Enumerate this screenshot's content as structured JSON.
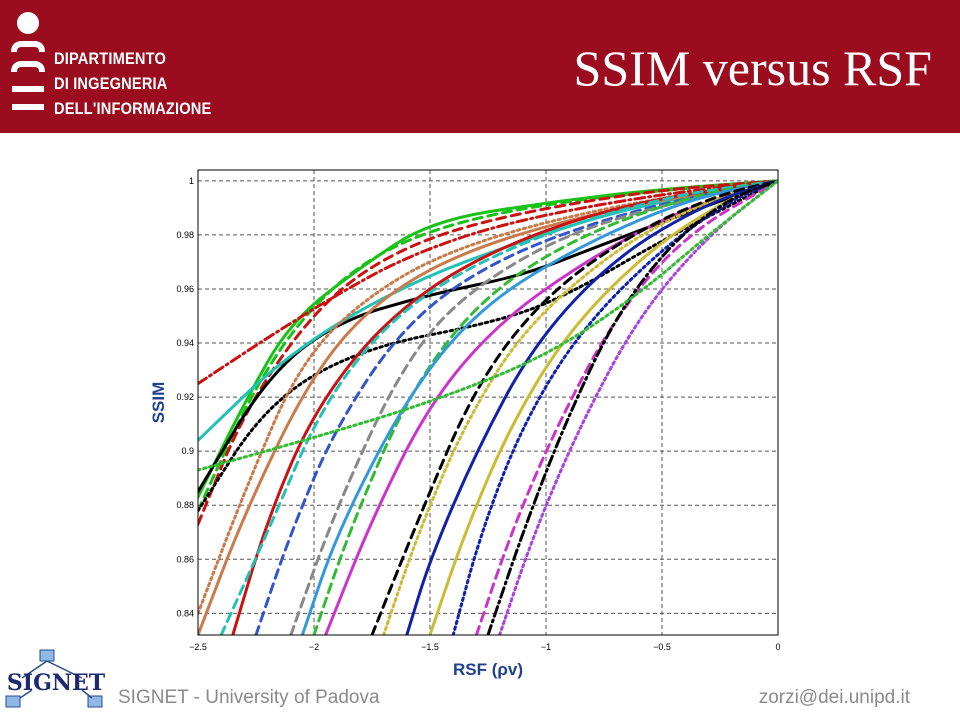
{
  "header": {
    "department_lines": [
      "DIPARTIMENTO",
      "DI INGEGNERIA",
      "DELL'INFORMAZIONE"
    ],
    "title": "SSIM versus RSF"
  },
  "footer": {
    "left": "SIGNET - University of Padova",
    "right": "zorzi@dei.unipd.it",
    "logo_text": "SIGNET"
  },
  "colors": {
    "header_bg": "#9b0d1e",
    "axis_label": "#1f3f8f",
    "footer_text": "#8a8a8a"
  },
  "chart_data": {
    "type": "line",
    "xlabel": "RSF (ρv)",
    "ylabel": "SSIM",
    "xlim": [
      -2.5,
      0
    ],
    "ylim": [
      0.832,
      1.004
    ],
    "grid": true,
    "x_ticks": [
      -2.5,
      -2,
      -1.5,
      -1,
      -0.5,
      0
    ],
    "x_tick_labels": [
      "−2.5",
      "−2",
      "−1.5",
      "−1",
      "−0.5",
      "0"
    ],
    "y_ticks": [
      0.84,
      0.86,
      0.88,
      0.9,
      0.92,
      0.94,
      0.96,
      0.98,
      1
    ],
    "y_tick_labels": [
      "0.84",
      "0.86",
      "0.88",
      "0.9",
      "0.92",
      "0.94",
      "0.96",
      "0.98",
      "1"
    ],
    "series": [
      {
        "color": "#19c219",
        "style": "solid",
        "points": [
          [
            -2.5,
            0.883
          ],
          [
            -2.3,
            0.918
          ],
          [
            -2.1,
            0.948
          ],
          [
            -1.8,
            0.968
          ],
          [
            -1.5,
            0.985
          ],
          [
            -1.0,
            0.992
          ],
          [
            -0.5,
            0.997
          ],
          [
            0,
            1.0
          ]
        ]
      },
      {
        "color": "#19c219",
        "style": "dashed",
        "points": [
          [
            -2.5,
            0.878
          ],
          [
            -2.25,
            0.925
          ],
          [
            -2.0,
            0.955
          ],
          [
            -1.7,
            0.975
          ],
          [
            -1.3,
            0.987
          ],
          [
            -0.7,
            0.995
          ],
          [
            0,
            1.0
          ]
        ]
      },
      {
        "color": "#cc1111",
        "style": "dashdot",
        "points": [
          [
            -2.5,
            0.925
          ],
          [
            -2.2,
            0.942
          ],
          [
            -1.9,
            0.958
          ],
          [
            -1.6,
            0.972
          ],
          [
            -1.2,
            0.984
          ],
          [
            -0.6,
            0.994
          ],
          [
            0,
            1.0
          ]
        ]
      },
      {
        "color": "#cc1111",
        "style": "dashed",
        "points": [
          [
            -2.5,
            0.873
          ],
          [
            -2.3,
            0.915
          ],
          [
            -2.0,
            0.952
          ],
          [
            -1.7,
            0.972
          ],
          [
            -1.3,
            0.985
          ],
          [
            -0.6,
            0.996
          ],
          [
            0,
            1.0
          ]
        ]
      },
      {
        "color": "#000000",
        "style": "solid",
        "points": [
          [
            -2.5,
            0.885
          ],
          [
            -2.2,
            0.928
          ],
          [
            -1.9,
            0.948
          ],
          [
            -1.5,
            0.958
          ],
          [
            -1.1,
            0.965
          ],
          [
            -0.8,
            0.975
          ],
          [
            -0.4,
            0.988
          ],
          [
            0,
            1.0
          ]
        ]
      },
      {
        "color": "#000000",
        "style": "dotted",
        "points": [
          [
            -2.5,
            0.878
          ],
          [
            -2.2,
            0.918
          ],
          [
            -1.8,
            0.938
          ],
          [
            -1.2,
            0.948
          ],
          [
            -0.9,
            0.958
          ],
          [
            -0.5,
            0.978
          ],
          [
            0,
            1.0
          ]
        ]
      },
      {
        "color": "#22c2b8",
        "style": "solid",
        "points": [
          [
            -2.5,
            0.904
          ],
          [
            -2.1,
            0.937
          ],
          [
            -1.6,
            0.962
          ],
          [
            -1.1,
            0.978
          ],
          [
            -0.6,
            0.991
          ],
          [
            0,
            1.0
          ]
        ]
      },
      {
        "color": "#c97b4a",
        "style": "solid",
        "points": [
          [
            -2.5,
            0.832
          ],
          [
            -2.3,
            0.877
          ],
          [
            -2.0,
            0.93
          ],
          [
            -1.7,
            0.958
          ],
          [
            -1.3,
            0.976
          ],
          [
            -0.7,
            0.99
          ],
          [
            0,
            1.0
          ]
        ]
      },
      {
        "color": "#c97b4a",
        "style": "dotted",
        "points": [
          [
            -2.5,
            0.84
          ],
          [
            -2.3,
            0.885
          ],
          [
            -2.05,
            0.935
          ],
          [
            -1.7,
            0.962
          ],
          [
            -1.3,
            0.978
          ],
          [
            -0.7,
            0.991
          ],
          [
            0,
            1.0
          ]
        ]
      },
      {
        "color": "#3355cc",
        "style": "dashed",
        "points": [
          [
            -2.25,
            0.832
          ],
          [
            -2.1,
            0.87
          ],
          [
            -1.9,
            0.91
          ],
          [
            -1.6,
            0.948
          ],
          [
            -1.2,
            0.972
          ],
          [
            -0.6,
            0.99
          ],
          [
            0,
            1.0
          ]
        ]
      },
      {
        "color": "#888888",
        "style": "dashed",
        "points": [
          [
            -2.1,
            0.832
          ],
          [
            -1.9,
            0.88
          ],
          [
            -1.6,
            0.935
          ],
          [
            -1.3,
            0.962
          ],
          [
            -0.8,
            0.985
          ],
          [
            0,
            1.0
          ]
        ]
      },
      {
        "color": "#cc1111",
        "style": "solid",
        "points": [
          [
            -2.35,
            0.832
          ],
          [
            -2.2,
            0.875
          ],
          [
            -2.0,
            0.915
          ],
          [
            -1.7,
            0.948
          ],
          [
            -1.3,
            0.972
          ],
          [
            -0.7,
            0.991
          ],
          [
            0,
            1.0
          ]
        ]
      },
      {
        "color": "#22c2b8",
        "style": "dashed",
        "points": [
          [
            -2.4,
            0.832
          ],
          [
            -2.2,
            0.87
          ],
          [
            -1.95,
            0.92
          ],
          [
            -1.6,
            0.955
          ],
          [
            -1.1,
            0.978
          ],
          [
            -0.5,
            0.994
          ],
          [
            0,
            1.0
          ]
        ]
      },
      {
        "color": "#33bb33",
        "style": "dashed",
        "points": [
          [
            -2.0,
            0.832
          ],
          [
            -1.85,
            0.87
          ],
          [
            -1.6,
            0.92
          ],
          [
            -1.3,
            0.955
          ],
          [
            -0.9,
            0.978
          ],
          [
            -0.4,
            0.994
          ],
          [
            0,
            1.0
          ]
        ]
      },
      {
        "color": "#3399dd",
        "style": "solid",
        "points": [
          [
            -2.05,
            0.832
          ],
          [
            -1.9,
            0.87
          ],
          [
            -1.6,
            0.92
          ],
          [
            -1.3,
            0.952
          ],
          [
            -0.9,
            0.974
          ],
          [
            -0.4,
            0.993
          ],
          [
            0,
            1.0
          ]
        ]
      },
      {
        "color": "#cc33cc",
        "style": "solid",
        "points": [
          [
            -1.95,
            0.832
          ],
          [
            -1.75,
            0.875
          ],
          [
            -1.5,
            0.918
          ],
          [
            -1.2,
            0.948
          ],
          [
            -0.8,
            0.972
          ],
          [
            -0.4,
            0.99
          ],
          [
            0,
            1.0
          ]
        ]
      },
      {
        "color": "#cc33cc",
        "style": "dashed",
        "points": [
          [
            -1.3,
            0.832
          ],
          [
            -1.15,
            0.87
          ],
          [
            -0.95,
            0.91
          ],
          [
            -0.7,
            0.95
          ],
          [
            -0.4,
            0.98
          ],
          [
            0,
            1.0
          ]
        ]
      },
      {
        "color": "#ccbb33",
        "style": "dotted",
        "points": [
          [
            -1.7,
            0.832
          ],
          [
            -1.55,
            0.87
          ],
          [
            -1.35,
            0.91
          ],
          [
            -1.1,
            0.945
          ],
          [
            -0.7,
            0.975
          ],
          [
            -0.3,
            0.993
          ],
          [
            0,
            1.0
          ]
        ]
      },
      {
        "color": "#ccbb33",
        "style": "solid",
        "points": [
          [
            -1.5,
            0.832
          ],
          [
            -1.35,
            0.87
          ],
          [
            -1.15,
            0.91
          ],
          [
            -0.9,
            0.945
          ],
          [
            -0.55,
            0.975
          ],
          [
            -0.2,
            0.994
          ],
          [
            0,
            1.0
          ]
        ]
      },
      {
        "color": "#000000",
        "style": "dashed",
        "points": [
          [
            -1.75,
            0.832
          ],
          [
            -1.55,
            0.875
          ],
          [
            -1.3,
            0.925
          ],
          [
            -1.0,
            0.958
          ],
          [
            -0.6,
            0.982
          ],
          [
            -0.25,
            0.995
          ],
          [
            0,
            1.0
          ]
        ]
      },
      {
        "color": "#1122aa",
        "style": "solid",
        "points": [
          [
            -1.6,
            0.832
          ],
          [
            -1.5,
            0.86
          ],
          [
            -1.3,
            0.9
          ],
          [
            -1.05,
            0.94
          ],
          [
            -0.7,
            0.972
          ],
          [
            -0.3,
            0.992
          ],
          [
            0,
            1.0
          ]
        ]
      },
      {
        "color": "#1122aa",
        "style": "dotted",
        "points": [
          [
            -1.4,
            0.832
          ],
          [
            -1.28,
            0.87
          ],
          [
            -1.1,
            0.91
          ],
          [
            -0.85,
            0.945
          ],
          [
            -0.5,
            0.975
          ],
          [
            -0.2,
            0.993
          ],
          [
            0,
            1.0
          ]
        ]
      },
      {
        "color": "#000000",
        "style": "dashdot",
        "points": [
          [
            -1.25,
            0.832
          ],
          [
            -1.1,
            0.87
          ],
          [
            -0.92,
            0.91
          ],
          [
            -0.7,
            0.95
          ],
          [
            -0.45,
            0.978
          ],
          [
            -0.2,
            0.994
          ],
          [
            0,
            1.0
          ]
        ]
      },
      {
        "color": "#aa44dd",
        "style": "dotted",
        "points": [
          [
            -1.2,
            0.832
          ],
          [
            -1.05,
            0.87
          ],
          [
            -0.85,
            0.91
          ],
          [
            -0.6,
            0.95
          ],
          [
            -0.3,
            0.98
          ],
          [
            0,
            1.0
          ]
        ]
      },
      {
        "color": "#33bb33",
        "style": "dotted",
        "points": [
          [
            -2.5,
            0.893
          ],
          [
            -2.0,
            0.905
          ],
          [
            -1.5,
            0.918
          ],
          [
            -1.0,
            0.935
          ],
          [
            -0.6,
            0.958
          ],
          [
            -0.3,
            0.98
          ],
          [
            0,
            1.0
          ]
        ]
      }
    ]
  }
}
